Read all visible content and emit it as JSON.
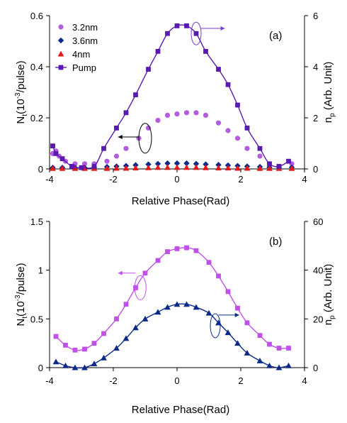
{
  "chart_data": [
    {
      "type": "scatter",
      "panel_label": "(a)",
      "xlabel": "Relative Phase(Rad)",
      "ylabel_left": "N",
      "ylabel_left_sub": "t",
      "ylabel_left_unit": "(10",
      "ylabel_left_exp": "-3",
      "ylabel_left_tail": "/pulse)",
      "ylabel_right": "n",
      "ylabel_right_sub": "p",
      "ylabel_right_tail": "(Arb. Unit)",
      "xlim": [
        -4,
        4
      ],
      "xticks": [
        -4,
        -2,
        0,
        2,
        4
      ],
      "xtick_labels": [
        "-4",
        "-2",
        "0",
        "2",
        "4"
      ],
      "ylim_left": [
        0,
        0.6
      ],
      "yticks_left": [
        0,
        0.2,
        0.4,
        0.6
      ],
      "ytick_labels_left": [
        "0",
        "0.2",
        "0.4",
        "0.6"
      ],
      "ylim_right": [
        0,
        6
      ],
      "yticks_right": [
        0,
        2,
        4,
        6
      ],
      "ytick_labels_right": [
        "0",
        "2",
        "4",
        "6"
      ],
      "grid": false,
      "legend_position": "top-left",
      "series": [
        {
          "name": "3.2nm",
          "axis": "left",
          "marker": "circle",
          "color": "#b35ce0",
          "x": [
            -3.9,
            -3.8,
            -3.7,
            -3.5,
            -3.2,
            -2.9,
            -2.6,
            -2.2,
            -1.9,
            -1.6,
            -1.2,
            -0.9,
            -0.6,
            -0.3,
            0.0,
            0.3,
            0.6,
            0.9,
            1.3,
            1.6,
            1.9,
            2.2,
            2.6,
            2.9,
            3.2,
            3.6
          ],
          "y": [
            0.06,
            0.07,
            0.05,
            0.03,
            0.02,
            0.02,
            0.02,
            0.03,
            0.05,
            0.08,
            0.12,
            0.16,
            0.19,
            0.21,
            0.215,
            0.22,
            0.22,
            0.21,
            0.18,
            0.15,
            0.12,
            0.08,
            0.05,
            0.02,
            0.01,
            0.02
          ]
        },
        {
          "name": "3.6nm",
          "axis": "left",
          "marker": "diamond",
          "color": "#0a2a8a",
          "x": [
            -3.9,
            -3.6,
            -3.2,
            -2.9,
            -2.6,
            -2.2,
            -1.9,
            -1.6,
            -1.3,
            -0.9,
            -0.6,
            -0.3,
            0.0,
            0.3,
            0.6,
            0.9,
            1.3,
            1.6,
            1.9,
            2.2,
            2.6,
            2.9,
            3.2,
            3.6
          ],
          "y": [
            0.005,
            0.005,
            0.005,
            0.005,
            0.006,
            0.008,
            0.01,
            0.012,
            0.015,
            0.018,
            0.02,
            0.022,
            0.022,
            0.022,
            0.02,
            0.018,
            0.016,
            0.014,
            0.012,
            0.01,
            0.008,
            0.006,
            0.006,
            0.006
          ]
        },
        {
          "name": "4nm",
          "axis": "left",
          "marker": "triangle",
          "color": "#e81818",
          "x": [
            -3.9,
            -3.6,
            -3.2,
            -2.9,
            -2.6,
            -2.2,
            -1.9,
            -1.6,
            -1.3,
            -0.9,
            -0.6,
            -0.3,
            0.0,
            0.3,
            0.6,
            0.9,
            1.3,
            1.6,
            1.9,
            2.2,
            2.6,
            2.9,
            3.2,
            3.6
          ],
          "y": [
            0.002,
            0.002,
            0.002,
            0.002,
            0.002,
            0.002,
            0.003,
            0.003,
            0.004,
            0.005,
            0.006,
            0.006,
            0.006,
            0.006,
            0.006,
            0.005,
            0.004,
            0.004,
            0.003,
            0.003,
            0.002,
            0.002,
            0.002,
            0.002
          ]
        },
        {
          "name": "Pump",
          "axis": "right",
          "marker": "square",
          "color": "#5a1ab0",
          "line": true,
          "x": [
            -3.9,
            -3.8,
            -3.6,
            -3.3,
            -3.0,
            -2.6,
            -2.3,
            -1.9,
            -1.6,
            -1.3,
            -0.9,
            -0.6,
            -0.3,
            0.0,
            0.3,
            0.6,
            0.9,
            1.3,
            1.6,
            1.9,
            2.2,
            2.6,
            2.9,
            3.2,
            3.5
          ],
          "y": [
            0.9,
            0.6,
            0.4,
            0.1,
            0.05,
            0.1,
            0.8,
            1.6,
            2.2,
            2.9,
            3.9,
            4.6,
            5.3,
            5.6,
            5.6,
            5.3,
            4.6,
            3.9,
            3.3,
            2.5,
            1.6,
            0.8,
            0.2,
            0.1,
            0.3
          ]
        }
      ]
    },
    {
      "type": "scatter",
      "panel_label": "(b)",
      "xlabel": "Relative Phase(Rad)",
      "ylabel_left": "N",
      "ylabel_left_sub": "t",
      "ylabel_left_unit": "(10",
      "ylabel_left_exp": "-3",
      "ylabel_left_tail": "/pulse)",
      "ylabel_right": "n",
      "ylabel_right_sub": "p",
      "ylabel_right_tail": "(Arb. Unit)",
      "xlim": [
        -4,
        4
      ],
      "xticks": [
        -4,
        -2,
        0,
        2,
        4
      ],
      "xtick_labels": [
        "-4",
        "-2",
        "0",
        "2",
        "4"
      ],
      "ylim_left": [
        0,
        1.5
      ],
      "yticks_left": [
        0,
        0.5,
        1,
        1.5
      ],
      "ytick_labels_left": [
        "0",
        "0.5",
        "1",
        "1.5"
      ],
      "ylim_right": [
        0,
        60
      ],
      "yticks_right": [
        0,
        20,
        40,
        60
      ],
      "ytick_labels_right": [
        "0",
        "20",
        "40",
        "60"
      ],
      "grid": false,
      "series": [
        {
          "axis": "left",
          "marker": "square",
          "color": "#c050e8",
          "line": true,
          "x": [
            -3.8,
            -3.5,
            -3.2,
            -2.9,
            -2.6,
            -2.3,
            -1.9,
            -1.6,
            -1.3,
            -1.0,
            -0.6,
            -0.3,
            0.0,
            0.3,
            0.6,
            1.0,
            1.3,
            1.6,
            1.9,
            2.2,
            2.6,
            2.9,
            3.2,
            3.5
          ],
          "y": [
            0.32,
            0.23,
            0.18,
            0.19,
            0.25,
            0.35,
            0.5,
            0.65,
            0.82,
            0.97,
            1.1,
            1.19,
            1.22,
            1.23,
            1.2,
            1.08,
            0.94,
            0.78,
            0.61,
            0.46,
            0.33,
            0.24,
            0.2,
            0.2
          ]
        },
        {
          "axis": "left",
          "marker": "triangle",
          "color": "#0a2a8a",
          "line": true,
          "x": [
            -3.8,
            -3.5,
            -3.2,
            -2.9,
            -2.6,
            -2.3,
            -1.9,
            -1.6,
            -1.3,
            -1.0,
            -0.6,
            -0.3,
            0.0,
            0.3,
            0.6,
            1.0,
            1.3,
            1.6,
            1.9,
            2.2,
            2.6,
            2.9,
            3.2,
            3.5
          ],
          "y": [
            0.06,
            0.02,
            0.0,
            0.0,
            0.04,
            0.1,
            0.2,
            0.3,
            0.41,
            0.5,
            0.57,
            0.62,
            0.65,
            0.65,
            0.62,
            0.56,
            0.46,
            0.36,
            0.25,
            0.15,
            0.07,
            0.02,
            0.0,
            0.02
          ]
        }
      ]
    }
  ]
}
